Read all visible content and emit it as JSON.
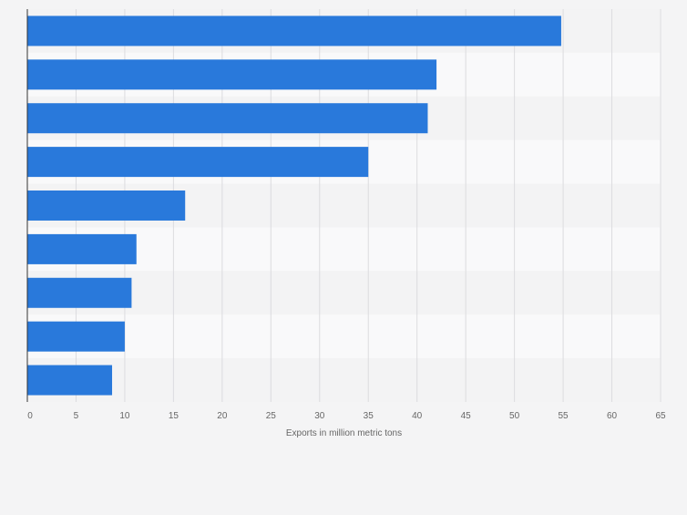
{
  "chart_data": {
    "type": "bar",
    "orientation": "horizontal",
    "categories": [
      "",
      "",
      "",
      "",
      "",
      "",
      "",
      "",
      ""
    ],
    "values": [
      54.8,
      42.0,
      41.1,
      35.0,
      16.2,
      11.2,
      10.7,
      10.0,
      8.7
    ],
    "xlabel": "Exports in million metric tons",
    "xlim": [
      0,
      65
    ],
    "xticks": [
      0,
      5,
      10,
      15,
      20,
      25,
      30,
      35,
      40,
      45,
      50,
      55,
      60,
      65
    ],
    "grid": true,
    "legend": "none",
    "colors": {
      "bar": "#2979db",
      "band_dark": "#f3f3f4",
      "band_light": "#f9f9fa",
      "grid": "#dcdcdf",
      "axis": "#333333",
      "tick_text": "#666666"
    }
  }
}
